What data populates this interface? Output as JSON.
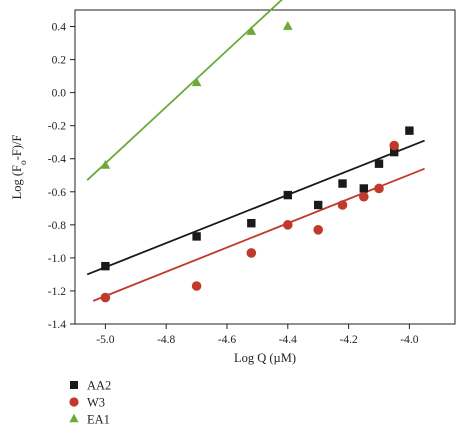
{
  "chart_data": {
    "type": "scatter",
    "xlabel": "Log Q (µM)",
    "ylabel_parts": [
      "Log (F",
      "o",
      "-F)/F"
    ],
    "xlim": [
      -5.1,
      -3.85
    ],
    "ylim": [
      -1.4,
      0.5
    ],
    "x_ticks": [
      -5.0,
      -4.8,
      -4.6,
      -4.4,
      -4.2,
      -4.0
    ],
    "x_tick_labels": [
      "-5.0",
      "-4.8",
      "-4.6",
      "-4.4",
      "-4.2",
      "-4.0"
    ],
    "y_ticks": [
      -1.4,
      -1.2,
      -1.0,
      -0.8,
      -0.6,
      -0.4,
      -0.2,
      0.0,
      0.2,
      0.4
    ],
    "y_tick_labels": [
      "-1.4",
      "-1.2",
      "-1.0",
      "-0.8",
      "-0.6",
      "-0.4",
      "-0.2",
      "0.0",
      "0.2",
      "0.4"
    ],
    "grid": false,
    "legend_position": "bottom-left",
    "series": [
      {
        "name": "AA2",
        "marker": "square",
        "color": "#1a1a1a",
        "points": [
          [
            -5.0,
            -1.05
          ],
          [
            -4.7,
            -0.87
          ],
          [
            -4.52,
            -0.79
          ],
          [
            -4.4,
            -0.62
          ],
          [
            -4.3,
            -0.68
          ],
          [
            -4.22,
            -0.55
          ],
          [
            -4.15,
            -0.58
          ],
          [
            -4.1,
            -0.43
          ],
          [
            -4.05,
            -0.36
          ],
          [
            -4.0,
            -0.23
          ]
        ],
        "fit": {
          "x": [
            -5.06,
            -3.95
          ],
          "y": [
            -1.1,
            -0.29
          ]
        }
      },
      {
        "name": "W3",
        "marker": "circle",
        "color": "#c0392b",
        "points": [
          [
            -5.0,
            -1.24
          ],
          [
            -4.7,
            -1.17
          ],
          [
            -4.52,
            -0.97
          ],
          [
            -4.4,
            -0.8
          ],
          [
            -4.3,
            -0.83
          ],
          [
            -4.22,
            -0.68
          ],
          [
            -4.15,
            -0.63
          ],
          [
            -4.1,
            -0.58
          ],
          [
            -4.05,
            -0.32
          ]
        ],
        "fit": {
          "x": [
            -5.04,
            -3.95
          ],
          "y": [
            -1.26,
            -0.46
          ]
        }
      },
      {
        "name": "EA1",
        "marker": "triangle",
        "color": "#6aaa3a",
        "points": [
          [
            -5.0,
            -0.44
          ],
          [
            -4.7,
            0.06
          ],
          [
            -4.52,
            0.37
          ],
          [
            -4.4,
            0.4
          ]
        ],
        "fit": {
          "x": [
            -5.06,
            -4.38
          ],
          "y": [
            -0.53,
            0.63
          ]
        }
      }
    ]
  }
}
